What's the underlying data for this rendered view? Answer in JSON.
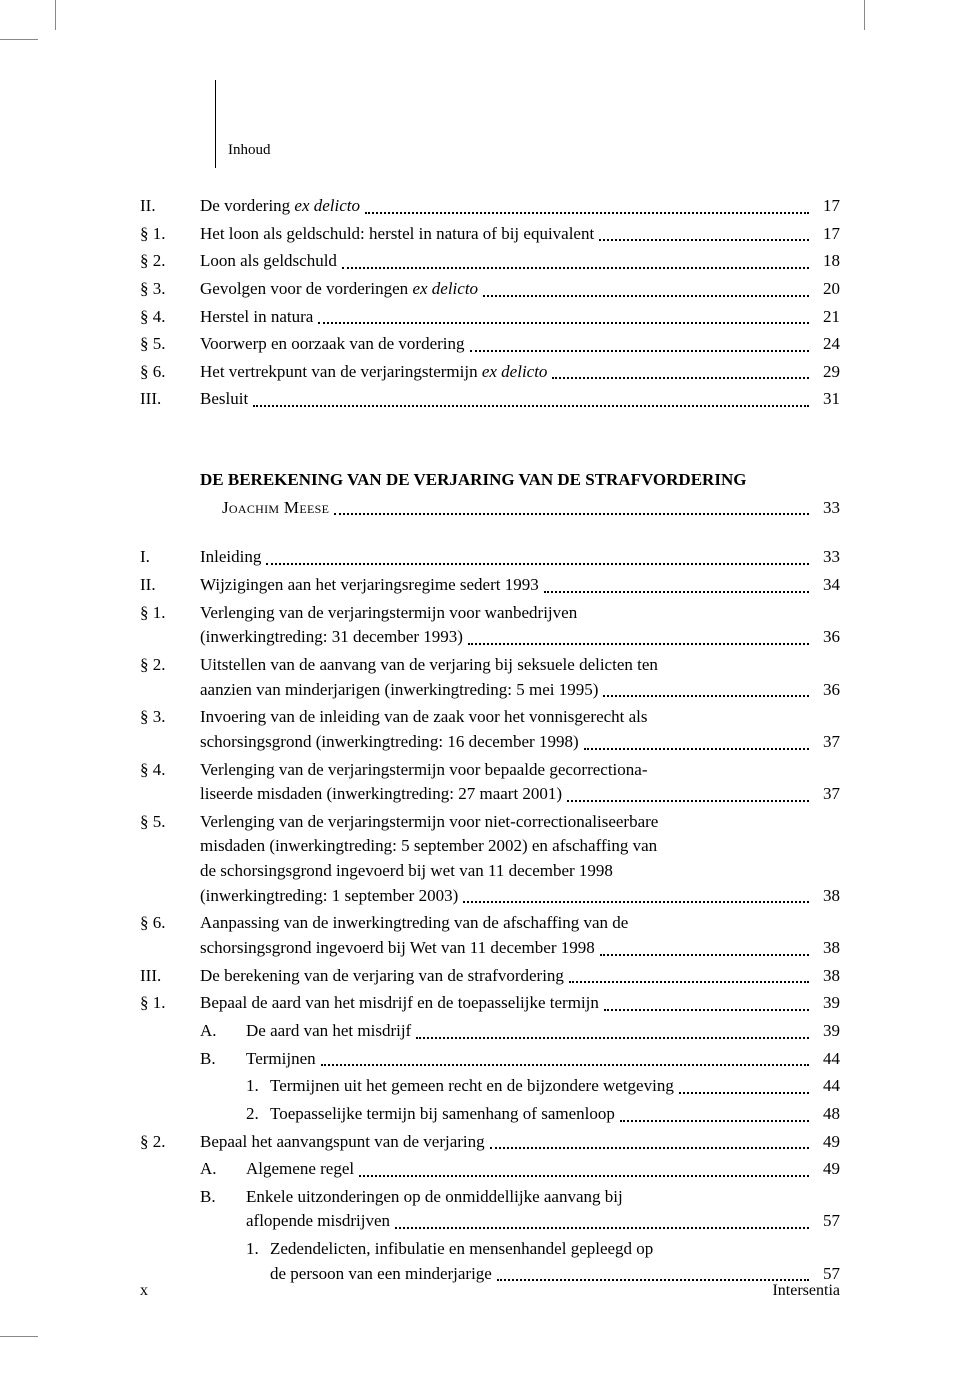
{
  "header": {
    "label": "Inhoud"
  },
  "section1": [
    {
      "num": "II.",
      "text": "De vordering ",
      "italic": "ex delicto",
      "page": "17"
    },
    {
      "num": "§ 1.",
      "text": "Het loon als geldschuld: herstel in natura of bij equivalent",
      "page": "17"
    },
    {
      "num": "§ 2.",
      "text": "Loon als geldschuld",
      "page": "18"
    },
    {
      "num": "§ 3.",
      "text": "Gevolgen voor de vorderingen ",
      "italic": "ex delicto",
      "page": "20"
    },
    {
      "num": "§ 4.",
      "text": "Herstel in natura",
      "page": "21"
    },
    {
      "num": "§ 5.",
      "text": "Voorwerp en oorzaak van de vordering",
      "page": "24"
    },
    {
      "num": "§ 6.",
      "text": "Het vertrekpunt van de verjaringstermijn ",
      "italic": "ex delicto",
      "page": "29"
    },
    {
      "num": "III.",
      "text": "Besluit",
      "page": "31"
    }
  ],
  "chapter": {
    "title": "DE BEREKENING VAN DE VERJARING VAN DE STRAFVORDERING",
    "author": "Joachim Meese",
    "page": "33"
  },
  "section2": {
    "r1": {
      "num": "I.",
      "text": "Inleiding",
      "page": "33"
    },
    "r2": {
      "num": "II.",
      "text": "Wijzigingen aan het verjaringsregime sedert 1993",
      "page": "34"
    },
    "r3": {
      "num": "§ 1.",
      "l1": "Verlenging van de verjaringstermijn voor wanbedrijven",
      "l2": "(inwerkingtreding: 31 december 1993)",
      "page": "36"
    },
    "r4": {
      "num": "§ 2.",
      "l1": "Uitstellen van de aanvang van de verjaring bij seksuele delicten ten",
      "l2": "aanzien van minderjarigen (inwerkingtreding: 5 mei 1995)",
      "page": "36"
    },
    "r5": {
      "num": "§ 3.",
      "l1": "Invoering van de inleiding van de zaak voor het vonnisgerecht als",
      "l2": "schorsingsgrond (inwerkingtreding: 16 december 1998)",
      "page": "37"
    },
    "r6": {
      "num": "§ 4.",
      "l1": "Verlenging van de verjaringstermijn voor bepaalde gecorrectiona-",
      "l2": "liseerde misdaden (inwerkingtreding: 27 maart 2001)",
      "page": "37"
    },
    "r7": {
      "num": "§ 5.",
      "l1": "Verlenging van de verjaringstermijn voor niet-correctionaliseerbare",
      "l2": "misdaden (inwerkingtreding: 5 september 2002) en afschaffing van",
      "l3": "de schorsingsgrond ingevoerd bij wet van 11 december 1998",
      "l4": "(inwerkingtreding: 1 september 2003)",
      "page": "38"
    },
    "r8": {
      "num": "§ 6.",
      "l1": "Aanpassing van de inwerkingtreding van de afschaffing van de",
      "l2": "schorsingsgrond ingevoerd bij Wet van 11 december 1998",
      "page": "38"
    },
    "r9": {
      "num": "III.",
      "text": "De berekening van de verjaring van de strafvordering",
      "page": "38"
    },
    "r10": {
      "num": "§ 1.",
      "text": "Bepaal de aard van het misdrijf en de toepasselijke termijn",
      "page": "39"
    },
    "r11": {
      "sub": "A.",
      "text": "De aard van het misdrijf",
      "page": "39"
    },
    "r12": {
      "sub": "B.",
      "text": "Termijnen",
      "page": "44"
    },
    "r13": {
      "subn": "1.",
      "text": "Termijnen uit het gemeen recht en de bijzondere wetgeving",
      "page": "44"
    },
    "r14": {
      "subn": "2.",
      "text": "Toepasselijke termijn bij samenhang of samenloop",
      "page": "48"
    },
    "r15": {
      "num": "§ 2.",
      "text": "Bepaal het aanvangspunt van de verjaring",
      "page": "49"
    },
    "r16": {
      "sub": "A.",
      "text": "Algemene regel",
      "page": "49"
    },
    "r17": {
      "sub": "B.",
      "l1": "Enkele uitzonderingen op de onmiddellijke aanvang bij",
      "l2": "aflopende misdrijven",
      "page": "57"
    },
    "r18": {
      "subn": "1.",
      "l1": "Zedendelicten, infibulatie en mensenhandel gepleegd op",
      "l2": "de persoon van een minderjarige",
      "page": "57"
    }
  },
  "footer": {
    "pagenum": "x",
    "publisher": "Intersentia"
  }
}
